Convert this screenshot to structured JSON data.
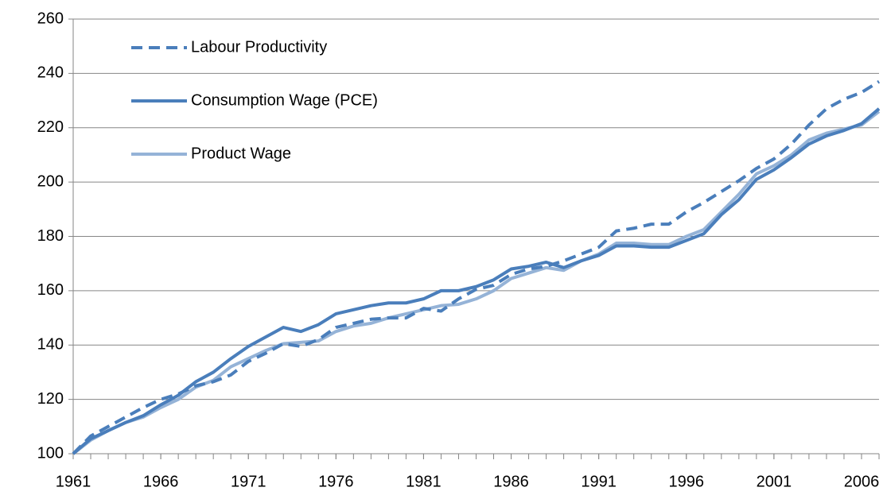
{
  "chart_data": {
    "type": "line",
    "x": [
      1961,
      1962,
      1963,
      1964,
      1965,
      1966,
      1967,
      1968,
      1969,
      1970,
      1971,
      1972,
      1973,
      1974,
      1975,
      1976,
      1977,
      1978,
      1979,
      1980,
      1981,
      1982,
      1983,
      1984,
      1985,
      1986,
      1987,
      1988,
      1989,
      1990,
      1991,
      1992,
      1993,
      1994,
      1995,
      1996,
      1997,
      1998,
      1999,
      2000,
      2001,
      2002,
      2003,
      2004,
      2005,
      2006,
      2007
    ],
    "xlim": [
      1961,
      2007
    ],
    "xticks": [
      1961,
      1966,
      1971,
      1976,
      1981,
      1986,
      1991,
      1996,
      2001,
      2006
    ],
    "ylim": [
      100,
      260
    ],
    "yticks": [
      100,
      120,
      140,
      160,
      180,
      200,
      220,
      240,
      260
    ],
    "grid": true,
    "legend": "upper left",
    "series": [
      {
        "name": "Labour Productivity",
        "color": "#4a7ebb",
        "dash": true,
        "values": [
          100,
          106.5,
          110,
          113.5,
          117,
          120,
          122,
          125,
          126.5,
          129,
          134,
          137,
          140.5,
          139.5,
          142,
          146.5,
          148,
          149.5,
          150,
          150,
          153.5,
          152.5,
          157,
          160.5,
          162,
          166,
          168,
          169,
          171,
          173.5,
          176,
          182,
          183,
          184.5,
          184.5,
          189,
          192.5,
          196.5,
          200.5,
          205,
          208.5,
          214,
          221,
          227,
          230.5,
          233,
          237
        ]
      },
      {
        "name": "Consumption Wage (PCE)",
        "color": "#4a7ebb",
        "dash": false,
        "values": [
          100,
          105.5,
          108.5,
          111.5,
          114,
          118,
          121.5,
          126.5,
          130,
          135,
          139.5,
          143,
          146.5,
          145,
          147.5,
          151.5,
          153,
          154.5,
          155.5,
          155.5,
          157,
          160,
          160,
          161.5,
          164,
          168,
          169,
          170.5,
          168.5,
          171,
          173,
          176.5,
          176.5,
          176,
          176,
          178.5,
          181,
          188,
          193.5,
          201,
          204.5,
          209,
          214,
          217,
          219,
          221.5,
          227
        ]
      },
      {
        "name": "Product Wage",
        "color": "#95b3d7",
        "dash": false,
        "values": [
          100,
          105,
          108.5,
          111.5,
          113.5,
          117,
          120,
          124.5,
          127,
          132,
          135,
          138,
          140.5,
          141,
          141.5,
          145,
          147,
          148,
          150,
          151.5,
          153,
          154.5,
          155,
          157,
          160,
          164.5,
          166.5,
          168.5,
          167.5,
          171,
          173.5,
          177.5,
          177.5,
          177,
          177,
          180,
          182.5,
          189,
          195.5,
          203,
          206,
          210,
          215.5,
          218,
          219.5,
          221,
          226
        ]
      }
    ]
  }
}
